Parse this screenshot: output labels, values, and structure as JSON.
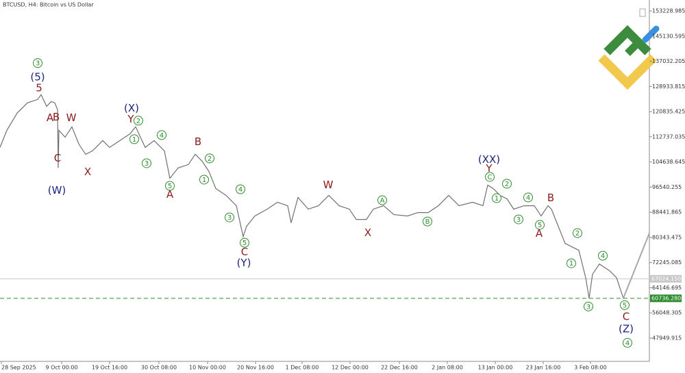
{
  "chart_data": {
    "type": "line",
    "title": "BTCUSD, H4:  Bitcoin vs US Dollar",
    "xlim": [
      0,
      948
    ],
    "ylim": [
      40446,
      156760
    ],
    "xticks": [
      {
        "value": 2,
        "label": "28 Sep 2025"
      },
      {
        "value": 90,
        "label": "9 Oct 00:00"
      },
      {
        "value": 160,
        "label": "19 Oct 16:00"
      },
      {
        "value": 232,
        "label": "30 Oct 08:00"
      },
      {
        "value": 303,
        "label": "10 Nov 00:00"
      },
      {
        "value": 373,
        "label": "20 Nov 16:00"
      },
      {
        "value": 441,
        "label": "1 Dec 08:00"
      },
      {
        "value": 511,
        "label": "12 Dec 00:00"
      },
      {
        "value": 583,
        "label": "22 Dec 16:00"
      },
      {
        "value": 653,
        "label": "2 Jan 08:00"
      },
      {
        "value": 723,
        "label": "13 Jan 00:00"
      },
      {
        "value": 793,
        "label": "23 Jan 16:00"
      },
      {
        "value": 862,
        "label": "3 Feb 08:00"
      }
    ],
    "yticks": [
      153228.985,
      145130.595,
      137032.205,
      128933.815,
      120835.425,
      112737.035,
      104638.645,
      96540.255,
      88441.865,
      80343.475,
      72245.085,
      64146.695,
      56048.305,
      47949.915
    ],
    "series": [
      {
        "color": "#707070",
        "x": [
          0,
          10,
          25,
          40,
          55,
          60,
          68,
          75,
          80,
          84,
          85,
          86,
          95,
          105,
          115,
          125,
          135,
          150,
          160,
          175,
          190,
          198,
          205,
          212,
          225,
          240,
          248,
          260,
          275,
          285,
          295,
          305,
          315,
          330,
          345,
          355,
          360,
          372,
          390,
          405,
          420,
          425,
          435,
          450,
          465,
          480,
          495,
          510,
          520,
          535,
          545,
          560,
          575,
          595,
          610,
          625,
          640,
          655,
          670,
          690,
          705,
          712,
          720,
          730,
          740,
          750,
          765,
          780,
          790,
          800,
          805,
          815,
          825,
          835,
          845,
          855,
          860,
          865,
          875,
          890,
          900,
          910,
          948
        ],
        "values": [
          109310,
          114827,
          120344,
          123655,
          124758,
          126303,
          122551,
          124096,
          123655,
          121448,
          102690,
          114827,
          112620,
          115931,
          110413,
          107103,
          108206,
          111517,
          109310,
          111517,
          113724,
          115931,
          112620,
          109310,
          111517,
          108206,
          99378,
          102690,
          103793,
          107103,
          104896,
          101586,
          96068,
          93862,
          90551,
          80619,
          83930,
          87241,
          89448,
          91655,
          90551,
          85034,
          93197,
          89448,
          90551,
          93862,
          90551,
          89448,
          86137,
          86137,
          89448,
          90551,
          87682,
          87241,
          88344,
          88344,
          90551,
          93862,
          90551,
          91655,
          90551,
          97171,
          96068,
          93862,
          92758,
          89448,
          90551,
          90551,
          87241,
          90551,
          89448,
          83930,
          78413,
          77310,
          76206,
          67378,
          60757,
          68482,
          71792,
          69586,
          67378,
          60757,
          81722
        ]
      }
    ],
    "price_lines": [
      {
        "value": 67024.15,
        "label": "67024.150",
        "color": "#c8c8c8",
        "style": "solid"
      },
      {
        "value": 60736.28,
        "label": "60736.280",
        "color": "#2e8b2e",
        "style": "dashed"
      }
    ],
    "colors": {
      "circle": "#2e8b2e",
      "red": "#8b1a1a",
      "blue": "#1a237e"
    },
    "annotations": [
      {
        "text": "3",
        "x": 55,
        "y": 136456,
        "style": "circle"
      },
      {
        "text": "(5)",
        "x": 55,
        "y": 131820,
        "style": "blue"
      },
      {
        "text": "5",
        "x": 57,
        "y": 128290,
        "style": "red"
      },
      {
        "text": "B",
        "x": 82,
        "y": 119020,
        "style": "red"
      },
      {
        "text": "A",
        "x": 73,
        "y": 118800,
        "style": "red"
      },
      {
        "text": "C",
        "x": 84,
        "y": 105780,
        "style": "red"
      },
      {
        "text": "(W)",
        "x": 83,
        "y": 95400,
        "style": "blue"
      },
      {
        "text": "W",
        "x": 104,
        "y": 118800,
        "style": "red"
      },
      {
        "text": "X",
        "x": 128,
        "y": 101360,
        "style": "red"
      },
      {
        "text": "(X)",
        "x": 192,
        "y": 121890,
        "style": "blue"
      },
      {
        "text": "Y",
        "x": 191,
        "y": 118360,
        "style": "red"
      },
      {
        "text": "2",
        "x": 202,
        "y": 117920,
        "style": "circle"
      },
      {
        "text": "1",
        "x": 196,
        "y": 111960,
        "style": "circle"
      },
      {
        "text": "4",
        "x": 236,
        "y": 113280,
        "style": "circle"
      },
      {
        "text": "3",
        "x": 214,
        "y": 104230,
        "style": "circle"
      },
      {
        "text": "5",
        "x": 248,
        "y": 96950,
        "style": "circle"
      },
      {
        "text": "A",
        "x": 248,
        "y": 94080,
        "style": "red"
      },
      {
        "text": "B",
        "x": 289,
        "y": 111070,
        "style": "red"
      },
      {
        "text": "2",
        "x": 306,
        "y": 105780,
        "style": "circle"
      },
      {
        "text": "1",
        "x": 298,
        "y": 98940,
        "style": "circle"
      },
      {
        "text": "4",
        "x": 351,
        "y": 95850,
        "style": "circle"
      },
      {
        "text": "3",
        "x": 335,
        "y": 86800,
        "style": "circle"
      },
      {
        "text": "5",
        "x": 357,
        "y": 78630,
        "style": "circle"
      },
      {
        "text": "C",
        "x": 357,
        "y": 75540,
        "style": "red"
      },
      {
        "text": "(Y)",
        "x": 356,
        "y": 72010,
        "style": "blue"
      },
      {
        "text": "W",
        "x": 479,
        "y": 97170,
        "style": "red"
      },
      {
        "text": "X",
        "x": 537,
        "y": 81720,
        "style": "red"
      },
      {
        "text": "A",
        "x": 558,
        "y": 92320,
        "style": "circle"
      },
      {
        "text": "B",
        "x": 624,
        "y": 85470,
        "style": "circle"
      },
      {
        "text": "(XX)",
        "x": 714,
        "y": 105340,
        "style": "blue"
      },
      {
        "text": "Y",
        "x": 714,
        "y": 102470,
        "style": "red"
      },
      {
        "text": "C",
        "x": 715,
        "y": 99820,
        "style": "circle"
      },
      {
        "text": "2",
        "x": 740,
        "y": 97610,
        "style": "circle"
      },
      {
        "text": "1",
        "x": 725,
        "y": 92980,
        "style": "circle"
      },
      {
        "text": "4",
        "x": 771,
        "y": 93200,
        "style": "circle"
      },
      {
        "text": "3",
        "x": 757,
        "y": 86140,
        "style": "circle"
      },
      {
        "text": "5",
        "x": 788,
        "y": 84370,
        "style": "circle"
      },
      {
        "text": "A",
        "x": 787,
        "y": 81500,
        "style": "red"
      },
      {
        "text": "B",
        "x": 804,
        "y": 92980,
        "style": "red"
      },
      {
        "text": "2",
        "x": 843,
        "y": 81720,
        "style": "circle"
      },
      {
        "text": "1",
        "x": 834,
        "y": 72010,
        "style": "circle"
      },
      {
        "text": "4",
        "x": 880,
        "y": 74440,
        "style": "circle"
      },
      {
        "text": "3",
        "x": 859,
        "y": 58110,
        "style": "circle"
      },
      {
        "text": "5",
        "x": 912,
        "y": 58550,
        "style": "circle"
      },
      {
        "text": "C",
        "x": 914,
        "y": 54800,
        "style": "red"
      },
      {
        "text": "(Z)",
        "x": 914,
        "y": 50830,
        "style": "blue"
      },
      {
        "text": "4",
        "x": 916,
        "y": 46410,
        "style": "circle"
      }
    ]
  }
}
